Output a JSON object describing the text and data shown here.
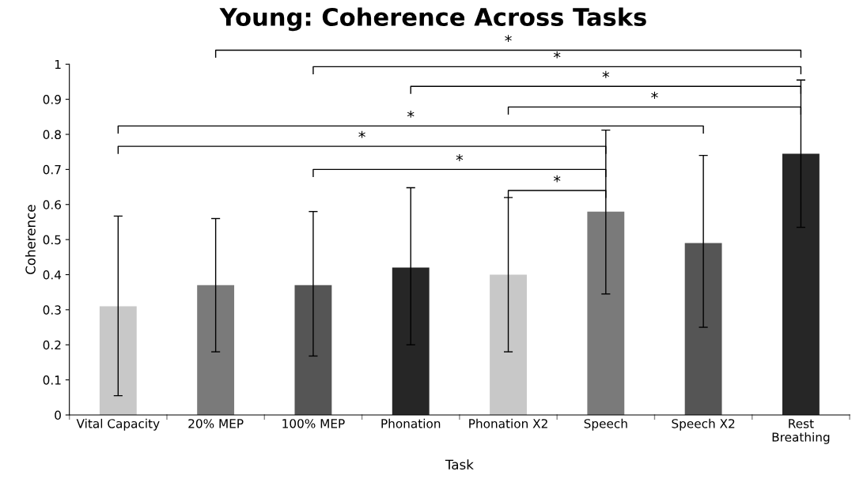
{
  "chart_data": {
    "type": "bar",
    "title": "Young: Coherence Across Tasks",
    "xlabel": "Task",
    "ylabel": "Coherence",
    "categories": [
      "Vital Capacity",
      "20% MEP",
      "100% MEP",
      "Phonation",
      "Phonation X2",
      "Speech",
      "Speech X2",
      "Rest\nBreathing"
    ],
    "values": [
      0.31,
      0.37,
      0.37,
      0.42,
      0.4,
      0.58,
      0.49,
      0.745
    ],
    "colors": [
      "#c8c8c8",
      "#7a7a7a",
      "#555555",
      "#262626",
      "#c8c8c8",
      "#7a7a7a",
      "#555555",
      "#262626"
    ],
    "errors": [
      [
        0.055,
        0.567
      ],
      [
        0.18,
        0.56
      ],
      [
        0.168,
        0.58
      ],
      [
        0.2,
        0.648
      ],
      [
        0.18,
        0.62
      ],
      [
        0.345,
        0.812
      ],
      [
        0.25,
        0.74
      ],
      [
        0.535,
        0.955
      ]
    ],
    "ylim": [
      0,
      1
    ],
    "yticks": [
      0,
      0.1,
      0.2,
      0.3,
      0.4,
      0.5,
      0.6,
      0.7,
      0.8,
      0.9,
      1
    ],
    "grid": false,
    "legend": false,
    "annotations": [
      "*",
      "*",
      "*",
      "*",
      "*",
      "*",
      "*",
      "*"
    ]
  }
}
